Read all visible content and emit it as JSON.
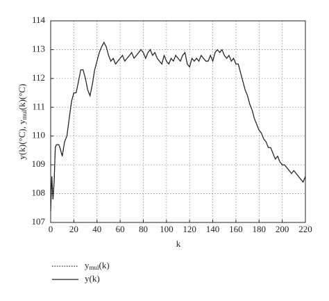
{
  "chart_data": {
    "type": "line",
    "ylabel": [
      "y(k)(°C), y",
      "mul",
      "(k)(°C)"
    ],
    "xlabel": "k",
    "x": [
      0,
      1,
      2,
      3,
      4,
      5,
      7,
      8,
      10,
      12,
      14,
      16,
      18,
      20,
      22,
      24,
      26,
      28,
      30,
      32,
      34,
      36,
      38,
      40,
      42,
      44,
      46,
      48,
      50,
      52,
      54,
      56,
      58,
      60,
      62,
      64,
      66,
      68,
      70,
      72,
      74,
      76,
      78,
      80,
      82,
      84,
      86,
      88,
      90,
      92,
      94,
      96,
      98,
      100,
      102,
      104,
      106,
      108,
      110,
      112,
      114,
      116,
      118,
      120,
      122,
      124,
      126,
      128,
      130,
      132,
      134,
      136,
      138,
      140,
      142,
      144,
      146,
      148,
      150,
      152,
      154,
      156,
      158,
      160,
      162,
      164,
      166,
      168,
      170,
      172,
      174,
      176,
      178,
      180,
      182,
      184,
      186,
      188,
      190,
      192,
      194,
      196,
      198,
      200,
      202,
      204,
      206,
      208,
      210,
      212,
      214,
      216,
      218,
      220
    ],
    "series": [
      {
        "name": [
          "y",
          "mul",
          "(k)"
        ],
        "color": "#222222",
        "dash": "dotted",
        "values": [
          107.4,
          108.6,
          107.8,
          108.4,
          109.6,
          109.7,
          109.7,
          109.6,
          109.3,
          109.8,
          110.0,
          110.6,
          111.2,
          111.5,
          111.5,
          111.9,
          112.3,
          112.3,
          112.0,
          111.6,
          111.4,
          111.8,
          112.3,
          112.6,
          112.9,
          113.1,
          113.25,
          113.1,
          112.8,
          112.6,
          112.7,
          112.5,
          112.6,
          112.7,
          112.8,
          112.6,
          112.7,
          112.8,
          112.9,
          112.7,
          112.8,
          112.9,
          113.0,
          112.9,
          112.7,
          112.9,
          113.0,
          112.8,
          112.9,
          112.7,
          112.6,
          112.5,
          112.8,
          112.6,
          112.5,
          112.7,
          112.6,
          112.8,
          112.7,
          112.6,
          112.8,
          112.9,
          112.5,
          112.4,
          112.7,
          112.6,
          112.7,
          112.6,
          112.8,
          112.7,
          112.6,
          112.6,
          112.8,
          112.6,
          112.9,
          113.0,
          112.9,
          113.0,
          112.8,
          112.7,
          112.8,
          112.6,
          112.7,
          112.5,
          112.5,
          112.2,
          111.9,
          111.6,
          111.4,
          111.1,
          110.9,
          110.6,
          110.4,
          110.2,
          110.1,
          109.9,
          109.8,
          109.6,
          109.6,
          109.4,
          109.2,
          109.3,
          109.1,
          109.0,
          109.0,
          108.9,
          108.8,
          108.7,
          108.8,
          108.7,
          108.6,
          108.5,
          108.4,
          108.6
        ]
      },
      {
        "name": [
          "y",
          "",
          "(k)"
        ],
        "color": "#222222",
        "dash": "solid",
        "values": [
          107.4,
          108.6,
          107.8,
          108.4,
          109.6,
          109.7,
          109.7,
          109.6,
          109.3,
          109.8,
          110.0,
          110.6,
          111.2,
          111.5,
          111.5,
          111.9,
          112.3,
          112.3,
          112.0,
          111.6,
          111.4,
          111.8,
          112.3,
          112.6,
          112.9,
          113.1,
          113.25,
          113.1,
          112.8,
          112.6,
          112.7,
          112.5,
          112.6,
          112.7,
          112.8,
          112.6,
          112.7,
          112.8,
          112.9,
          112.7,
          112.8,
          112.9,
          113.0,
          112.9,
          112.7,
          112.9,
          113.0,
          112.8,
          112.9,
          112.7,
          112.6,
          112.5,
          112.8,
          112.6,
          112.5,
          112.7,
          112.6,
          112.8,
          112.7,
          112.6,
          112.8,
          112.9,
          112.5,
          112.4,
          112.7,
          112.6,
          112.7,
          112.6,
          112.8,
          112.7,
          112.6,
          112.6,
          112.8,
          112.6,
          112.9,
          113.0,
          112.9,
          113.0,
          112.8,
          112.7,
          112.8,
          112.6,
          112.7,
          112.5,
          112.5,
          112.2,
          111.9,
          111.6,
          111.4,
          111.1,
          110.9,
          110.6,
          110.4,
          110.2,
          110.1,
          109.9,
          109.8,
          109.6,
          109.6,
          109.4,
          109.2,
          109.3,
          109.1,
          109.0,
          109.0,
          108.9,
          108.8,
          108.7,
          108.8,
          108.7,
          108.6,
          108.5,
          108.4,
          108.6
        ]
      }
    ],
    "xlim": [
      0,
      220
    ],
    "xticks": [
      0,
      20,
      40,
      60,
      80,
      100,
      120,
      140,
      160,
      180,
      200,
      220
    ],
    "ylim": [
      107,
      114
    ],
    "yticks": [
      107,
      108,
      109,
      110,
      111,
      112,
      113,
      114
    ],
    "grid": true
  }
}
